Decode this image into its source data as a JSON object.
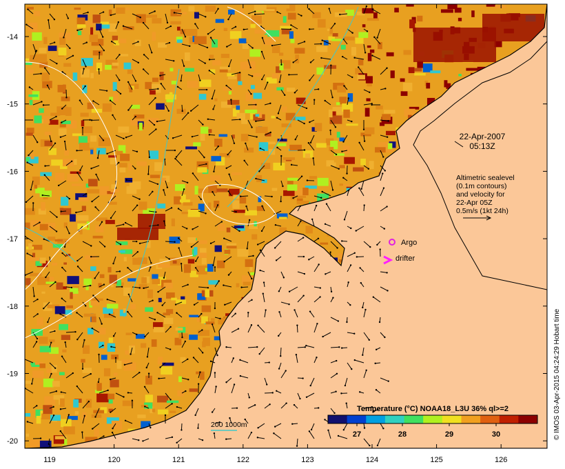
{
  "map": {
    "lat_labels": [
      "-14",
      "-15",
      "-16",
      "-17",
      "-18",
      "-19",
      "-20"
    ],
    "lon_labels": [
      "119",
      "120",
      "121",
      "122",
      "123",
      "124",
      "125",
      "126"
    ],
    "datetime_line1": "22-Apr-2007",
    "datetime_line2": "05:13Z",
    "altimetry_lines": [
      "Altimetric sealevel",
      "(0.1m contours)",
      "and velocity for",
      "22-Apr 05Z",
      "0.5m/s (1kt 24h)"
    ],
    "argo_label": "Argo",
    "drifter_label": "drifter",
    "depth_label": "200  1000m",
    "colorbar_title": "Temperature (°C) NOAA18_L3U 36% ql>=2",
    "colorbar_ticks": [
      "27",
      "28",
      "29",
      "30"
    ],
    "credit": "© IMOS 03-Apr-2015 04:24:29 Hobart time"
  },
  "colors": {
    "land": "#fbc798",
    "argo": "#e020e0",
    "drifter": "#ff20ff",
    "isobath": "#40c8c8",
    "sst_scale": [
      "#10106e",
      "#0040d0",
      "#00a0e0",
      "#30d0c0",
      "#40e060",
      "#b0f020",
      "#f0e020",
      "#f0a020",
      "#e06010",
      "#c02000",
      "#8c0000"
    ]
  }
}
